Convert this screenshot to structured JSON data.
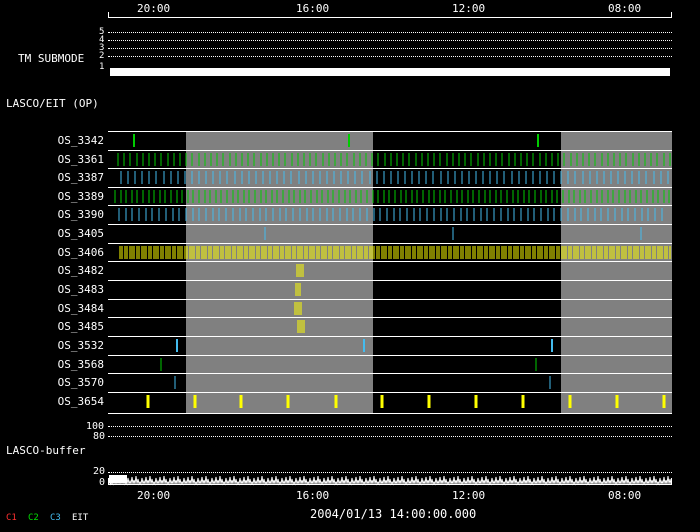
{
  "time_axis": {
    "labels": [
      "20:00",
      "16:00",
      "12:00",
      "08:00"
    ],
    "date_time": "2004/01/13 14:00:00.000"
  },
  "tm_submode": {
    "label": "TM SUBMODE",
    "levels": [
      "5",
      "4",
      "3",
      "2",
      "1"
    ]
  },
  "section_lasco_eit": "LASCO/EIT (OP)",
  "rows": [
    {
      "name": "OS_3342",
      "color": "#00cc00"
    },
    {
      "name": "OS_3361",
      "color": "#00cc00"
    },
    {
      "name": "OS_3387",
      "color": "#44bbee"
    },
    {
      "name": "OS_3389",
      "color": "#00cc00"
    },
    {
      "name": "OS_3390",
      "color": "#44bbee"
    },
    {
      "name": "OS_3405",
      "color": "#44bbee"
    },
    {
      "name": "OS_3406",
      "color": "#ffff00"
    },
    {
      "name": "OS_3482",
      "color": "#ffff00"
    },
    {
      "name": "OS_3483",
      "color": "#ffff00"
    },
    {
      "name": "OS_3484",
      "color": "#ffff00"
    },
    {
      "name": "OS_3485",
      "color": "#ffff00"
    },
    {
      "name": "OS_3532",
      "color": "#44bbee"
    },
    {
      "name": "OS_3568",
      "color": "#00cc00"
    },
    {
      "name": "OS_3570",
      "color": "#44bbee"
    },
    {
      "name": "OS_3654",
      "color": "#ffff00"
    }
  ],
  "buffer": {
    "label": "LASCO-buffer",
    "ticks": [
      "100",
      "80",
      "20",
      "0"
    ]
  },
  "legend": [
    {
      "text": "C1",
      "color": "#ff3030"
    },
    {
      "text": "C2",
      "color": "#00dd00"
    },
    {
      "text": "C3",
      "color": "#44bbee"
    },
    {
      "text": "EIT",
      "color": "#ffffff"
    }
  ]
}
